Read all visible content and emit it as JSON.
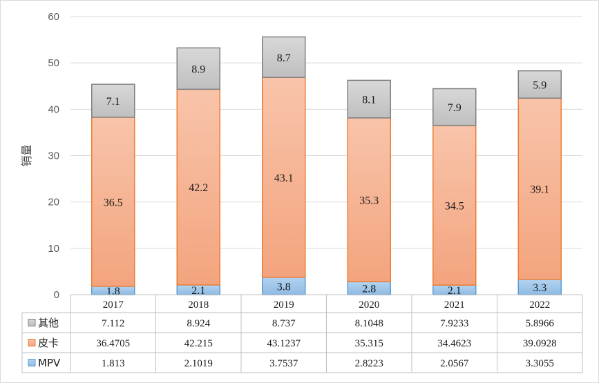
{
  "chart_data": {
    "type": "bar",
    "stacked": true,
    "categories": [
      "2017",
      "2018",
      "2019",
      "2020",
      "2021",
      "2022"
    ],
    "series": [
      {
        "name": "MPV",
        "values": [
          1.813,
          2.1019,
          3.7537,
          2.8223,
          2.0567,
          3.3055
        ],
        "labels": [
          "1.8",
          "2.1",
          "3.8",
          "2.8",
          "2.1",
          "3.3"
        ],
        "table_values": [
          "1.813",
          "2.1019",
          "3.7537",
          "2.8223",
          "2.0567",
          "3.3055"
        ],
        "color": "#9dc3e6",
        "stroke": "#5b9bd5"
      },
      {
        "name": "皮卡",
        "values": [
          36.4705,
          42.215,
          43.1237,
          35.315,
          34.4623,
          39.0928
        ],
        "labels": [
          "36.5",
          "42.2",
          "43.1",
          "35.3",
          "34.5",
          "39.1"
        ],
        "table_values": [
          "36.4705",
          "42.215",
          "43.1237",
          "35.315",
          "34.4623",
          "39.0928"
        ],
        "color": "#f4a582",
        "stroke": "#ed7d31"
      },
      {
        "name": "其他",
        "values": [
          7.112,
          8.924,
          8.737,
          8.1048,
          7.9233,
          5.8966
        ],
        "labels": [
          "7.1",
          "8.9",
          "8.7",
          "8.1",
          "7.9",
          "5.9"
        ],
        "table_values": [
          "7.112",
          "8.924",
          "8.737",
          "8.1048",
          "7.9233",
          "5.8966"
        ],
        "color": "#c9c9c9",
        "stroke": "#7f7f7f"
      }
    ],
    "ylabel": "销量",
    "ylim": [
      0,
      60
    ],
    "yticks": [
      "0",
      "10",
      "20",
      "30",
      "40",
      "50",
      "60"
    ],
    "grid": true,
    "legend": "data-table",
    "table_row_order": [
      "其他",
      "皮卡",
      "MPV"
    ]
  }
}
